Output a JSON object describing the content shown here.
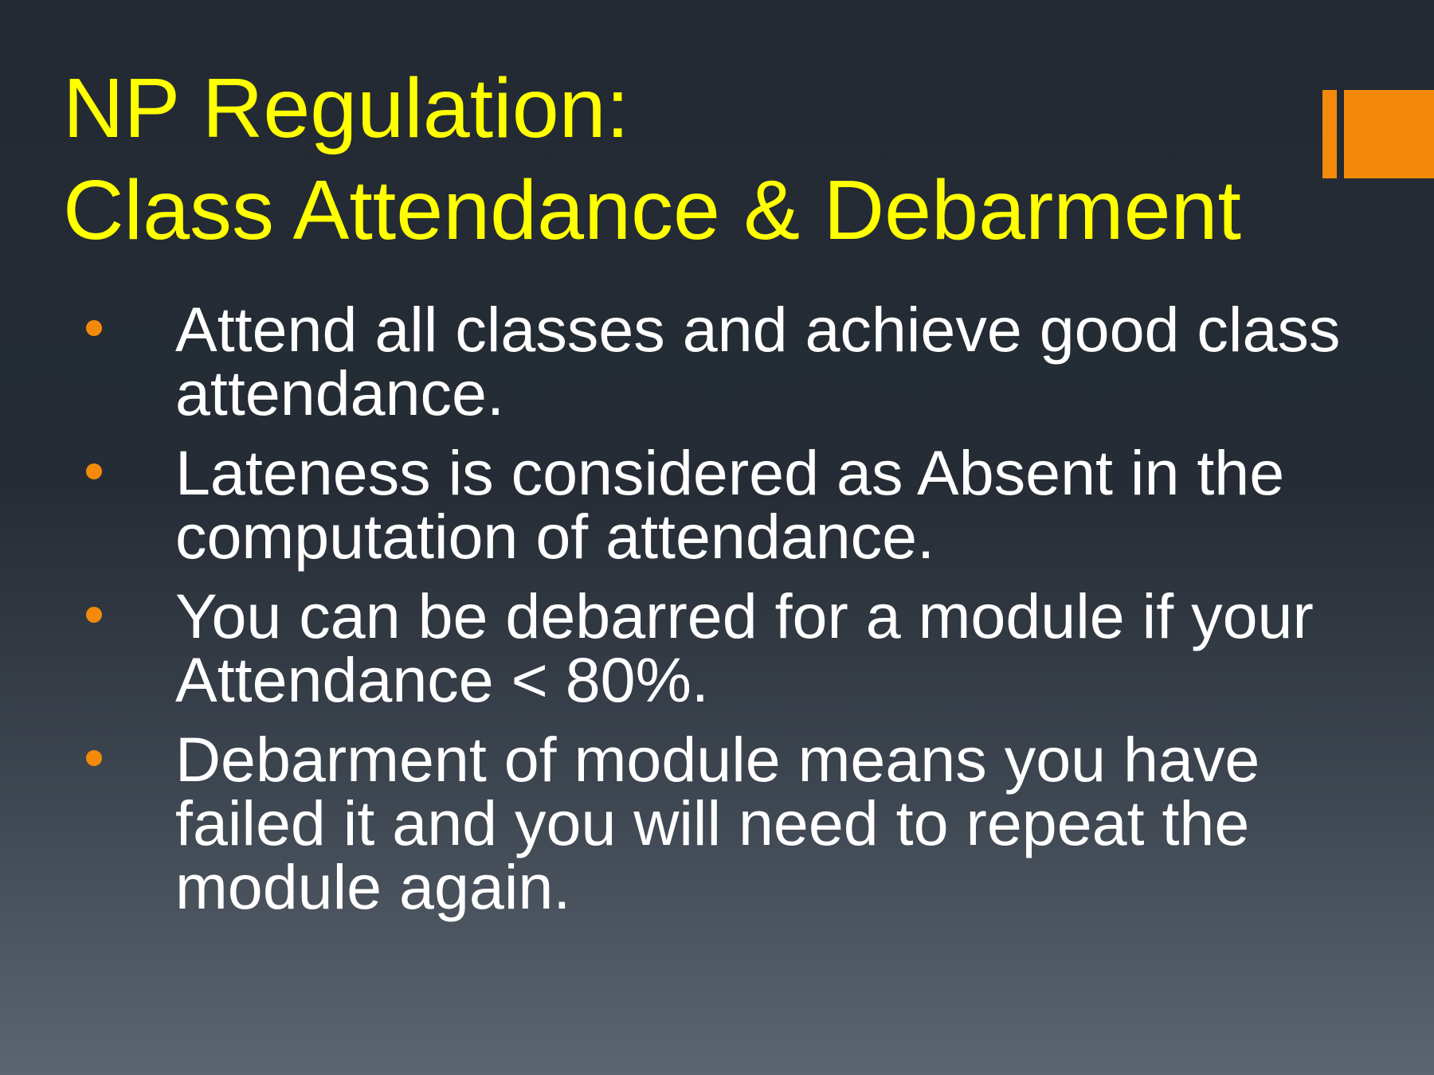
{
  "slide": {
    "title_lines": [
      "NP Regulation:",
      "Class Attendance & Debarment"
    ],
    "bullets": [
      {
        "text": "Attend all classes and achieve good class attendance."
      },
      {
        "text": "Lateness is considered as Absent in the computation of attendance."
      },
      {
        "text": "You can be debarred for a module if your Attendance < 80%."
      },
      {
        "text": "Debarment of module means you have failed it and you will need to repeat the module again."
      }
    ],
    "colors": {
      "title": "#ffff00",
      "body_text": "#ffffff",
      "accent": "#f38a0b",
      "background_top": "#232a33",
      "background_bottom": "#5c6570"
    }
  }
}
